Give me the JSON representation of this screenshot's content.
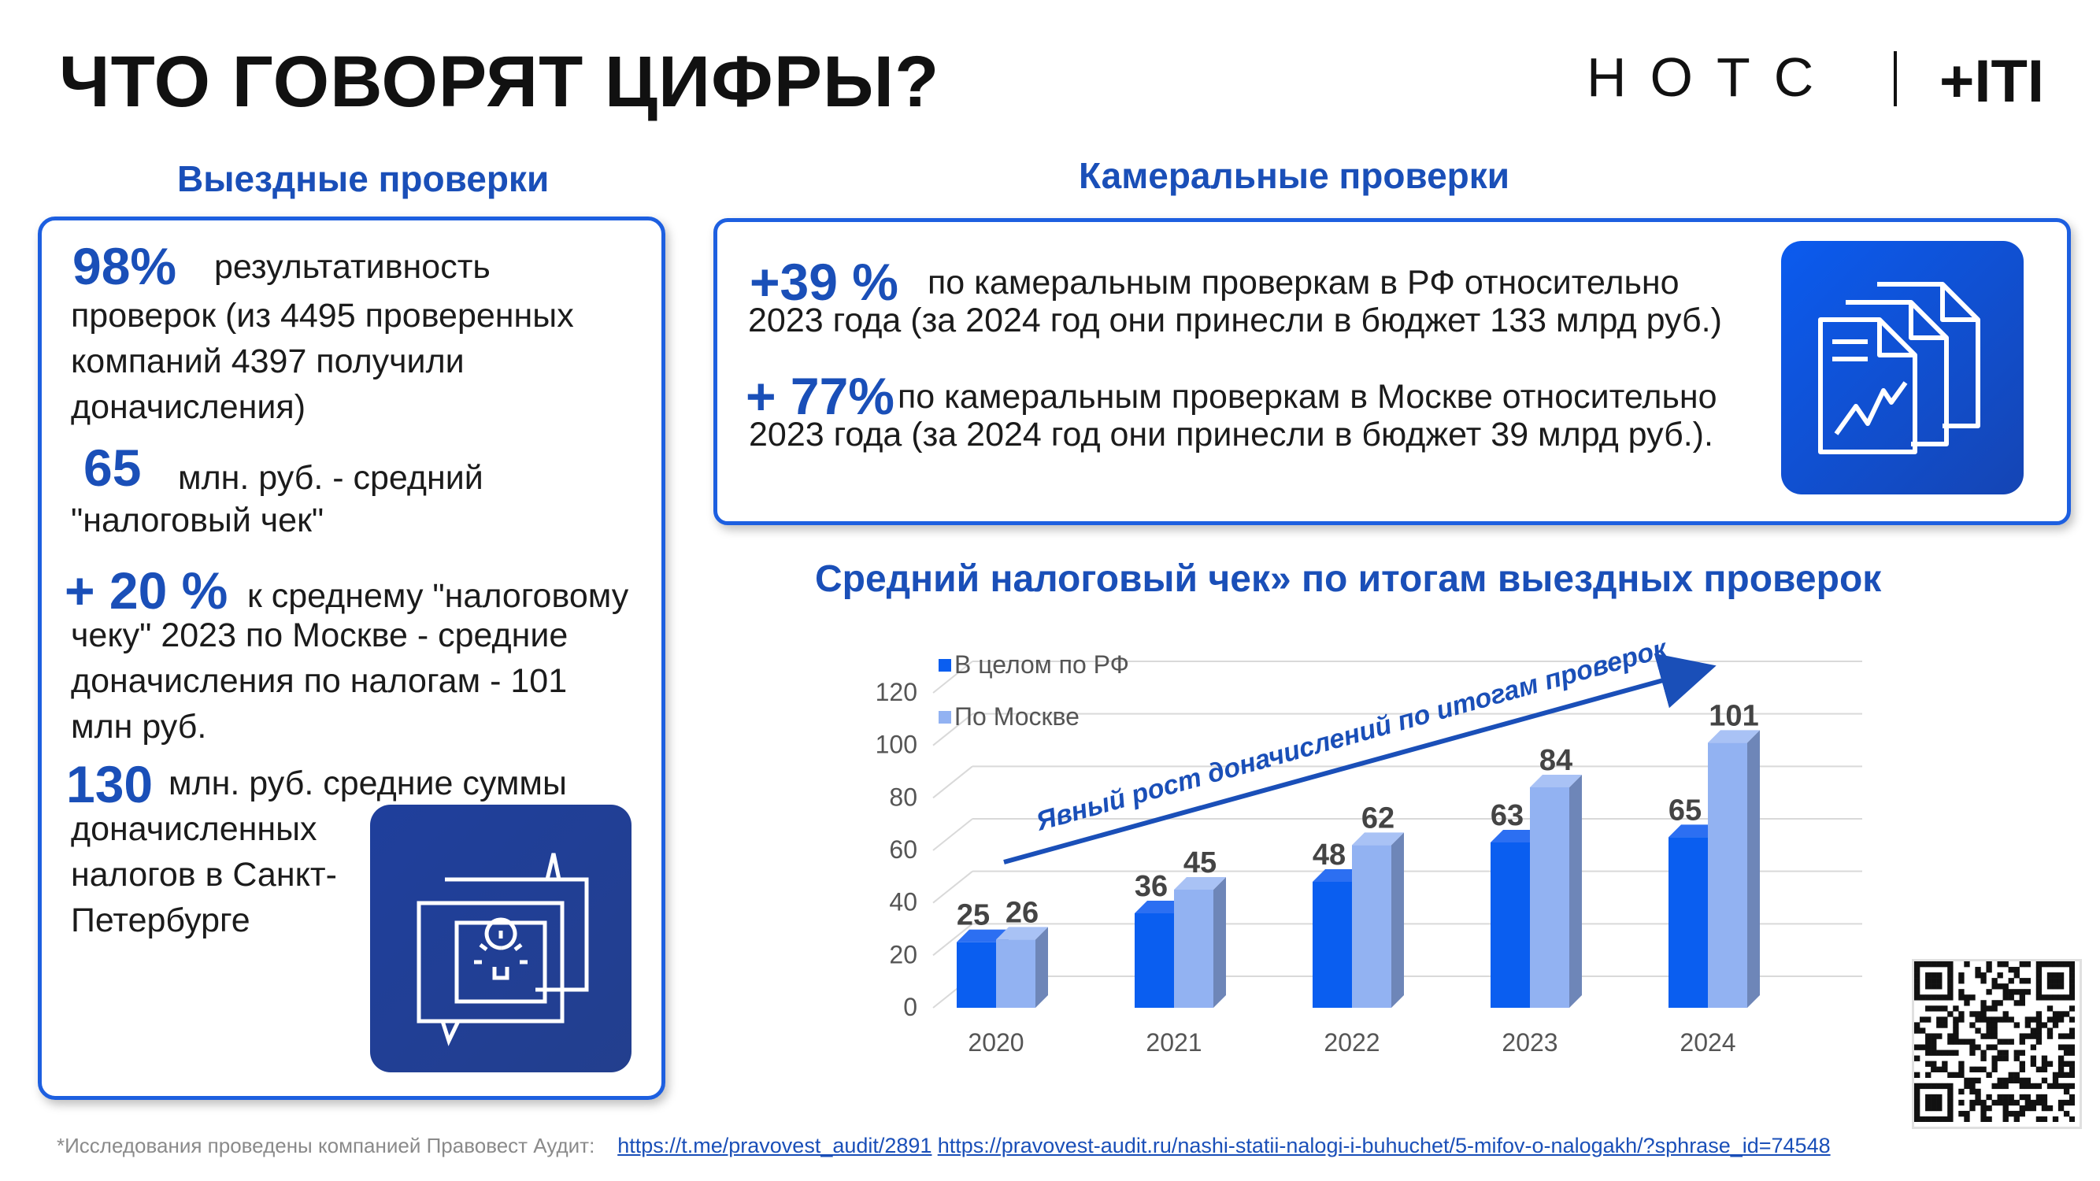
{
  "header": {
    "title": "ЧТО ГОВОРЯТ ЦИФРЫ?",
    "logo_letters": "НОТС",
    "logo_right": "+ITI"
  },
  "left": {
    "section_title": "Выездные проверки",
    "stat1_value": "98%",
    "stat1_line1": "результативность",
    "stat1_rest": [
      "проверок (из 4495 проверенных",
      "компаний 4397 получили",
      "доначисления)"
    ],
    "stat2_value": "65",
    "stat2_line1": "млн. руб. - средний",
    "stat2_rest": [
      "\"налоговый чек\""
    ],
    "stat3_value": "+ 20 %",
    "stat3_line1": "к среднему \"налоговому",
    "stat3_rest": [
      "чеку\" 2023 по Москве - средние",
      "доначисления по налогам - 101",
      "млн руб."
    ],
    "stat4_value": "130",
    "stat4_line1": "млн. руб. средние суммы",
    "stat4_rest": [
      "доначисленных",
      "налогов в Санкт-",
      "Петербурге"
    ],
    "icon": "idea-bulb-icon"
  },
  "right": {
    "section_title": "Камеральные проверки",
    "stat1_value": "+39 %",
    "stat1_line1": "по камеральным проверкам в РФ относительно",
    "stat1_line2": "2023 года (за 2024 год они принесли в бюджет 133 млрд руб.)",
    "stat2_value": "+ 77%",
    "stat2_line1": "по камеральным проверкам в Москве относительно",
    "stat2_line2": "2023 года (за 2024 год они принесли в бюджет 39 млрд руб.).",
    "icon": "documents-chart-icon"
  },
  "chart_data": {
    "type": "bar",
    "title": "Средний налоговый чек» по итогам выездных проверок",
    "categories": [
      "2020",
      "2021",
      "2022",
      "2023",
      "2024"
    ],
    "series": [
      {
        "name": "В целом по РФ",
        "values": [
          25,
          36,
          48,
          63,
          65
        ],
        "color": "#0a5ef0"
      },
      {
        "name": "По Москве",
        "values": [
          26,
          45,
          62,
          84,
          101
        ],
        "color": "#92b2f2"
      }
    ],
    "ylim": [
      0,
      120
    ],
    "yticks": [
      0,
      20,
      40,
      60,
      80,
      100,
      120
    ],
    "annotation": "Явный рост доначислений по итогам проверок",
    "legend": "top-left",
    "grid": true
  },
  "footer": {
    "note": "*Исследования проведены компанией Правовест Аудит:",
    "link1": "https://t.me/pravovest_audit/2891",
    "link2": "https://pravovest-audit.ru/nashi-statii-nalogi-i-buhuchet/5-mifov-o-nalogakh/?sphrase_id=74548"
  },
  "qr_icon": "qr-code-icon"
}
